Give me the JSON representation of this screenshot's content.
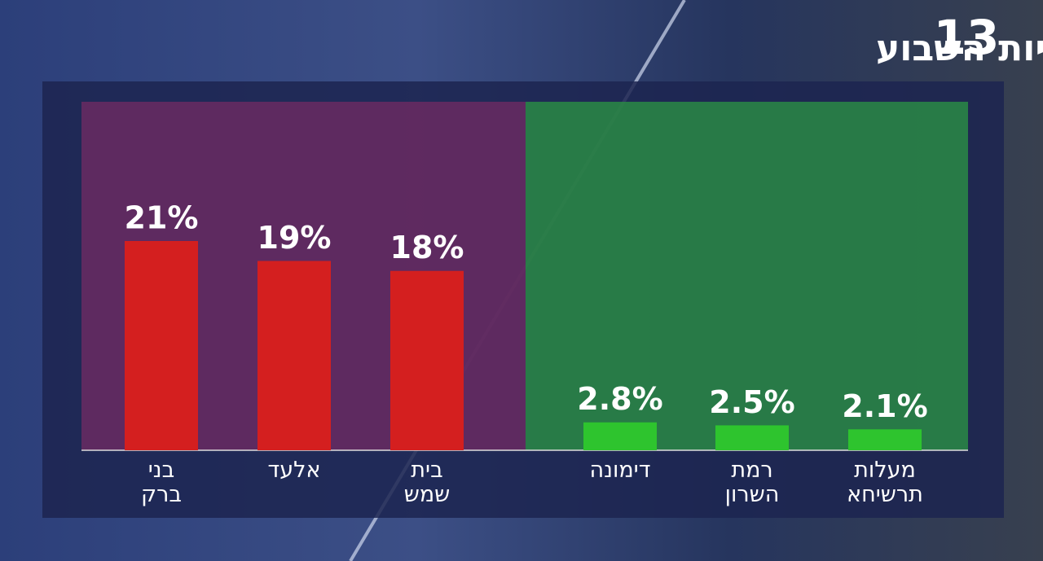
{
  "logo": "13",
  "chart_data": {
    "type": "bar",
    "title": "אחוז הבדיקות החיוביות השבוע",
    "categories": [
      "בני ברק",
      "אלעד",
      "בית שמש",
      "דימונה",
      "רמת השרון",
      "מעלות תרשיחא"
    ],
    "values": [
      21,
      19,
      18,
      2.8,
      2.5,
      2.1
    ],
    "value_labels": [
      "21%",
      "19%",
      "18%",
      "2.8%",
      "2.5%",
      "2.1%"
    ],
    "colors": [
      "#d41f1f",
      "#d41f1f",
      "#d41f1f",
      "#2ec42e",
      "#2ec42e",
      "#2ec42e"
    ]
  }
}
